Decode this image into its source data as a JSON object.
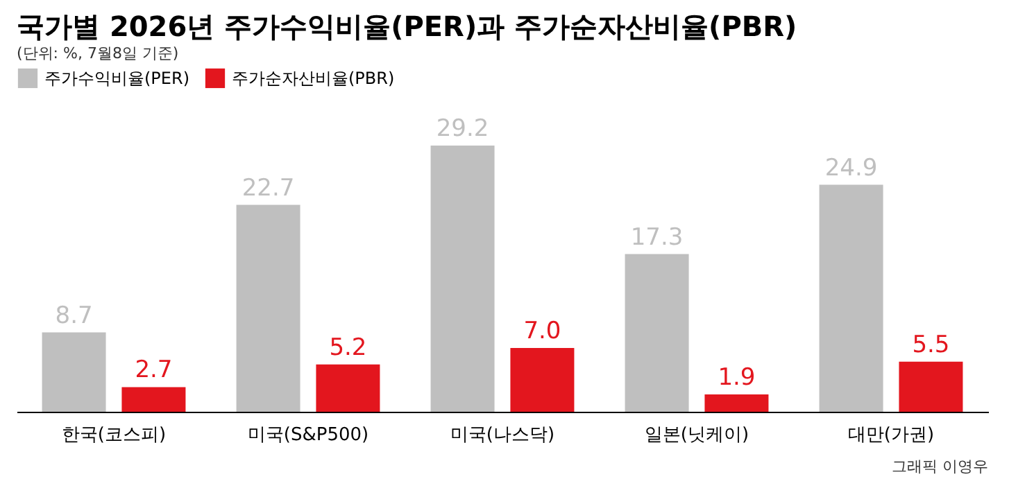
{
  "chart_data": {
    "type": "bar",
    "title": "국가별 2026년 주가수익비율(PER)과 주가순자산비율(PBR)",
    "subtitle": "(단위: %, 7월8일 기준)",
    "categories": [
      "한국(코스피)",
      "미국(S&P500)",
      "미국(나스닥)",
      "일본(닛케이)",
      "대만(가권)"
    ],
    "series": [
      {
        "name": "주가수익비율(PER)",
        "color": "#bfbfbf",
        "values": [
          8.7,
          22.7,
          29.2,
          17.3,
          24.9
        ],
        "value_labels": [
          "8.7",
          "22.7",
          "29.2",
          "17.3",
          "24.9"
        ]
      },
      {
        "name": "주가순자산비율(PBR)",
        "color": "#e3161e",
        "values": [
          2.7,
          5.2,
          7.0,
          1.9,
          5.5
        ],
        "value_labels": [
          "2.7",
          "5.2",
          "7.0",
          "1.9",
          "5.5"
        ]
      }
    ],
    "legend": "top left",
    "grid": false,
    "annotations": [
      "그래픽 이영우"
    ]
  }
}
